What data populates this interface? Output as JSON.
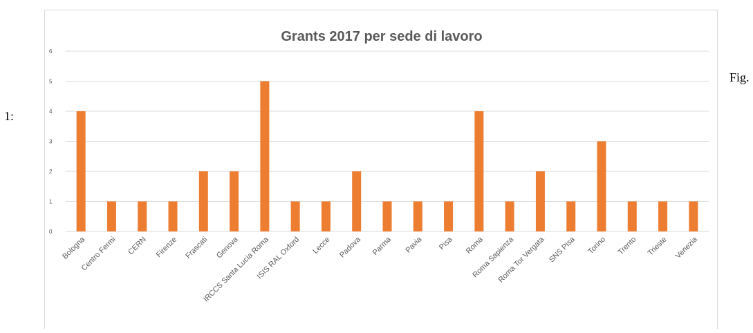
{
  "captions": {
    "left": "1:",
    "right": "Fig."
  },
  "colors": {
    "bar": "#ED7D31",
    "grid": "#d9d9d9",
    "title": "#595959",
    "tick": "#595959"
  },
  "chart_data": {
    "type": "bar",
    "title": "Grants 2017 per sede di lavoro",
    "xlabel": "",
    "ylabel": "",
    "ylim": [
      0,
      6
    ],
    "yticks": [
      "0",
      "1",
      "2",
      "3",
      "4",
      "5",
      "6"
    ],
    "grid": true,
    "legend": "none",
    "categories": [
      "Bologna",
      "Centro Fermi",
      "CERN",
      "Firenze",
      "Frascati",
      "Genova",
      "IRCCS Santa Lucia Roma",
      "ISIS RAL Oxford",
      "Lecce",
      "Padova",
      "Parma",
      "Pavia",
      "Pisa",
      "Roma",
      "Roma Sapienza",
      "Roma Tor Vergata",
      "SNS Pisa",
      "Torino",
      "Trento",
      "Trieste",
      "Venezia"
    ],
    "values": [
      4,
      1,
      1,
      1,
      2,
      2,
      5,
      1,
      1,
      2,
      1,
      1,
      1,
      4,
      1,
      2,
      1,
      3,
      1,
      1,
      1
    ]
  }
}
